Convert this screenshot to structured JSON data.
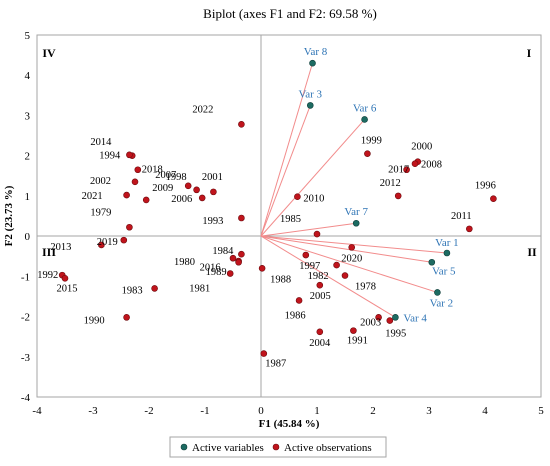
{
  "chart_data": {
    "type": "scatter",
    "title": "Biplot (axes F1 and F2: 69.58 %)",
    "xlabel": "F1 (45.84 %)",
    "ylabel": "F2 (23.73 %)",
    "xlim": [
      -4,
      5
    ],
    "ylim": [
      -4,
      5
    ],
    "xticks": [
      "-4",
      "-3",
      "-2",
      "-1",
      "0",
      "1",
      "2",
      "3",
      "4",
      "5"
    ],
    "yticks": [
      "-4",
      "-3",
      "-2",
      "-1",
      "0",
      "1",
      "2",
      "3",
      "4",
      "5"
    ],
    "grid": false,
    "quadrant_labels": [
      "I",
      "II",
      "III",
      "IV"
    ],
    "legend": {
      "placement": "bottom",
      "entries": [
        "Active variables",
        "Active observations"
      ]
    },
    "colors": {
      "variables": "#1d6b62",
      "observations": "#c0141c",
      "vector_lines": "#f28c8c",
      "variable_labels": "#2e74b5",
      "axis": "#a6a6a6"
    },
    "series": [
      {
        "name": "Active variables",
        "points": [
          {
            "label": "Var 1",
            "x": 3.32,
            "y": -0.42
          },
          {
            "label": "Var 2",
            "x": 3.15,
            "y": -1.4
          },
          {
            "label": "Var 3",
            "x": 0.88,
            "y": 3.25
          },
          {
            "label": "Var 4",
            "x": 2.4,
            "y": -2.02
          },
          {
            "label": "Var 5",
            "x": 3.05,
            "y": -0.65
          },
          {
            "label": "Var 6",
            "x": 1.85,
            "y": 2.9
          },
          {
            "label": "Var 7",
            "x": 1.7,
            "y": 0.32
          },
          {
            "label": "Var 8",
            "x": 0.92,
            "y": 4.3
          }
        ]
      },
      {
        "name": "Active observations",
        "points": [
          {
            "label": "1978",
            "x": 1.5,
            "y": -0.98
          },
          {
            "label": "1979",
            "x": -2.35,
            "y": 0.22
          },
          {
            "label": "1980",
            "x": -0.5,
            "y": -0.55
          },
          {
            "label": "1981",
            "x": -0.55,
            "y": -0.93
          },
          {
            "label": "1982",
            "x": 1.35,
            "y": -0.72
          },
          {
            "label": "1983",
            "x": -1.9,
            "y": -1.3
          },
          {
            "label": "1984",
            "x": -0.35,
            "y": -0.45
          },
          {
            "label": "1985",
            "x": 1.0,
            "y": 0.05
          },
          {
            "label": "1986",
            "x": 0.68,
            "y": -1.6
          },
          {
            "label": "1987",
            "x": 0.05,
            "y": -2.92
          },
          {
            "label": "1988",
            "x": 0.02,
            "y": -0.8
          },
          {
            "label": "1989",
            "x": -0.4,
            "y": -0.62
          },
          {
            "label": "1990",
            "x": -2.4,
            "y": -2.02
          },
          {
            "label": "1991",
            "x": 1.65,
            "y": -2.35
          },
          {
            "label": "1992",
            "x": -3.55,
            "y": -0.97
          },
          {
            "label": "1993",
            "x": -0.35,
            "y": 0.45
          },
          {
            "label": "1994",
            "x": -2.3,
            "y": 2.0
          },
          {
            "label": "1995",
            "x": 2.3,
            "y": -2.1
          },
          {
            "label": "1996",
            "x": 4.15,
            "y": 0.93
          },
          {
            "label": "1997",
            "x": 0.8,
            "y": -0.47
          },
          {
            "label": "1998",
            "x": -1.15,
            "y": 1.15
          },
          {
            "label": "1999",
            "x": 1.9,
            "y": 2.05
          },
          {
            "label": "2000",
            "x": 2.8,
            "y": 1.85
          },
          {
            "label": "2001",
            "x": -0.85,
            "y": 1.1
          },
          {
            "label": "2002",
            "x": -2.25,
            "y": 1.35
          },
          {
            "label": "2003",
            "x": 2.1,
            "y": -2.02
          },
          {
            "label": "2004",
            "x": 1.05,
            "y": -2.38
          },
          {
            "label": "2005",
            "x": 1.05,
            "y": -1.22
          },
          {
            "label": "2006",
            "x": -1.05,
            "y": 0.95
          },
          {
            "label": "2007",
            "x": -1.3,
            "y": 1.25
          },
          {
            "label": "2008",
            "x": 2.75,
            "y": 1.8
          },
          {
            "label": "2009",
            "x": -2.05,
            "y": 0.9
          },
          {
            "label": "2010",
            "x": 0.65,
            "y": 0.98
          },
          {
            "label": "2011",
            "x": 3.72,
            "y": 0.18
          },
          {
            "label": "2012",
            "x": 2.45,
            "y": 1.0
          },
          {
            "label": "2013",
            "x": -2.85,
            "y": -0.22
          },
          {
            "label": "2014",
            "x": -2.35,
            "y": 2.02
          },
          {
            "label": "2015",
            "x": -3.5,
            "y": -1.05
          },
          {
            "label": "2016",
            "x": -0.4,
            "y": -0.65
          },
          {
            "label": "2017",
            "x": 2.6,
            "y": 1.65
          },
          {
            "label": "2018",
            "x": -2.2,
            "y": 1.65
          },
          {
            "label": "2019",
            "x": -2.45,
            "y": -0.1
          },
          {
            "label": "2020",
            "x": 1.62,
            "y": -0.28
          },
          {
            "label": "2021",
            "x": -2.4,
            "y": 1.02
          },
          {
            "label": "2022",
            "x": -0.35,
            "y": 2.78
          }
        ]
      }
    ]
  }
}
